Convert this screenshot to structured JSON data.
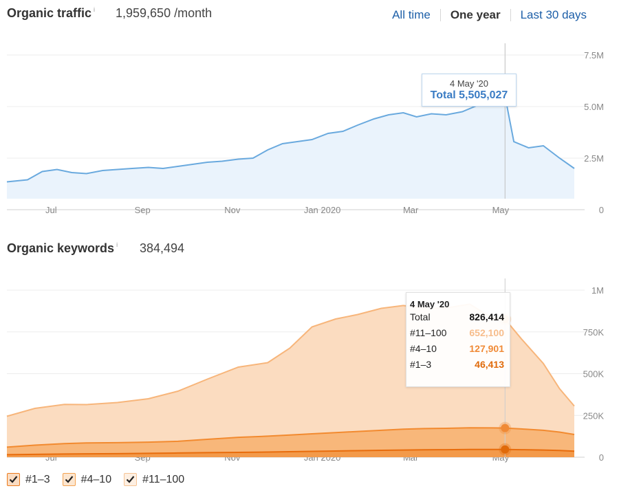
{
  "traffic": {
    "title": "Organic traffic",
    "info_icon": "i",
    "value": "1,959,650 /month",
    "ranges": [
      "All time",
      "One year",
      "Last 30 days"
    ],
    "active_range": "One year",
    "tooltip_date": "4 May '20",
    "tooltip_total": "Total 5,505,027"
  },
  "keywords": {
    "title": "Organic keywords",
    "info_icon": "i",
    "value": "384,494",
    "tooltip": {
      "date": "4 May '20",
      "rows": [
        {
          "label": "Total",
          "value": "826,414",
          "color": "#111111"
        },
        {
          "label": "#11–100",
          "value": "652,100",
          "color": "#f7bd8c"
        },
        {
          "label": "#4–10",
          "value": "127,901",
          "color": "#f08a36"
        },
        {
          "label": "#1–3",
          "value": "46,413",
          "color": "#e06a0a"
        }
      ]
    }
  },
  "legend": [
    {
      "label": "#1–3",
      "color": "#ec7a1c",
      "checked": true
    },
    {
      "label": "#4–10",
      "color": "#f4a24f",
      "checked": true
    },
    {
      "label": "#11–100",
      "color": "#f6c393",
      "checked": true
    }
  ],
  "chart_data": [
    {
      "type": "area",
      "x_labels": [
        "Jul",
        "Sep",
        "Nov",
        "Jan 2020",
        "Mar",
        "May"
      ],
      "y_ticks": [
        "7.5M",
        "5.0M",
        "2.5M",
        "0"
      ],
      "ylim": [
        0,
        7500000
      ],
      "grid": true,
      "highlight": {
        "x": "4 May '20",
        "value": 5505027
      },
      "series": [
        {
          "name": "Total",
          "color": "#69a9de",
          "x": [
            "2019-06-01",
            "2019-06-15",
            "2019-06-25",
            "2019-07-05",
            "2019-07-15",
            "2019-07-25",
            "2019-08-05",
            "2019-08-15",
            "2019-08-25",
            "2019-09-05",
            "2019-09-15",
            "2019-09-25",
            "2019-10-05",
            "2019-10-15",
            "2019-10-25",
            "2019-11-05",
            "2019-11-15",
            "2019-11-25",
            "2019-12-05",
            "2019-12-15",
            "2019-12-25",
            "2020-01-05",
            "2020-01-15",
            "2020-01-25",
            "2020-02-05",
            "2020-02-15",
            "2020-02-25",
            "2020-03-05",
            "2020-03-15",
            "2020-03-25",
            "2020-04-05",
            "2020-04-15",
            "2020-04-25",
            "2020-05-04",
            "2020-05-10",
            "2020-05-20",
            "2020-05-30",
            "2020-06-10",
            "2020-06-20"
          ],
          "values": [
            1350000,
            1450000,
            1850000,
            1950000,
            1800000,
            1750000,
            1900000,
            1950000,
            2000000,
            2050000,
            2000000,
            2100000,
            2200000,
            2300000,
            2350000,
            2450000,
            2500000,
            2900000,
            3200000,
            3300000,
            3400000,
            3700000,
            3800000,
            4100000,
            4400000,
            4600000,
            4700000,
            4500000,
            4650000,
            4600000,
            4750000,
            5050000,
            5300000,
            5505027,
            3300000,
            3000000,
            3100000,
            2500000,
            2000000
          ]
        }
      ]
    },
    {
      "type": "area",
      "stacked": true,
      "x_labels": [
        "Jul",
        "Sep",
        "Nov",
        "Jan 2020",
        "Mar",
        "May"
      ],
      "y_ticks": [
        "1M",
        "750K",
        "500K",
        "250K",
        "0"
      ],
      "ylim": [
        0,
        1000000
      ],
      "grid": true,
      "highlight": {
        "x": "4 May '20",
        "values": {
          "#1–3": 46413,
          "#4–10": 127901,
          "#11–100": 652100
        }
      },
      "x": [
        "2019-06-01",
        "2019-06-20",
        "2019-07-10",
        "2019-07-25",
        "2019-08-15",
        "2019-09-05",
        "2019-09-25",
        "2019-10-15",
        "2019-11-05",
        "2019-11-25",
        "2019-12-10",
        "2019-12-25",
        "2020-01-10",
        "2020-01-25",
        "2020-02-10",
        "2020-02-25",
        "2020-03-10",
        "2020-03-25",
        "2020-04-10",
        "2020-04-25",
        "2020-05-04",
        "2020-05-15",
        "2020-05-30",
        "2020-06-10",
        "2020-06-20"
      ],
      "series": [
        {
          "name": "#1–3",
          "color": "#ec7a1c",
          "values": [
            15000,
            17000,
            19000,
            20000,
            21000,
            23000,
            25000,
            27000,
            29000,
            31000,
            33000,
            35000,
            37000,
            39000,
            41000,
            43000,
            44000,
            45000,
            46000,
            46500,
            46413,
            45000,
            43000,
            40000,
            36000
          ]
        },
        {
          "name": "#4–10",
          "color": "#f4a24f",
          "values": [
            45000,
            55000,
            62000,
            65000,
            66000,
            67000,
            70000,
            80000,
            90000,
            95000,
            100000,
            105000,
            110000,
            115000,
            120000,
            125000,
            127000,
            128000,
            130000,
            129000,
            127901,
            124000,
            118000,
            110000,
            100000
          ]
        },
        {
          "name": "#11–100",
          "color": "#f7cfa9",
          "values": [
            185000,
            220000,
            235000,
            230000,
            240000,
            260000,
            300000,
            360000,
            420000,
            440000,
            520000,
            640000,
            680000,
            700000,
            730000,
            740000,
            720000,
            720000,
            740000,
            660000,
            652100,
            540000,
            400000,
            260000,
            170000
          ]
        }
      ]
    }
  ]
}
